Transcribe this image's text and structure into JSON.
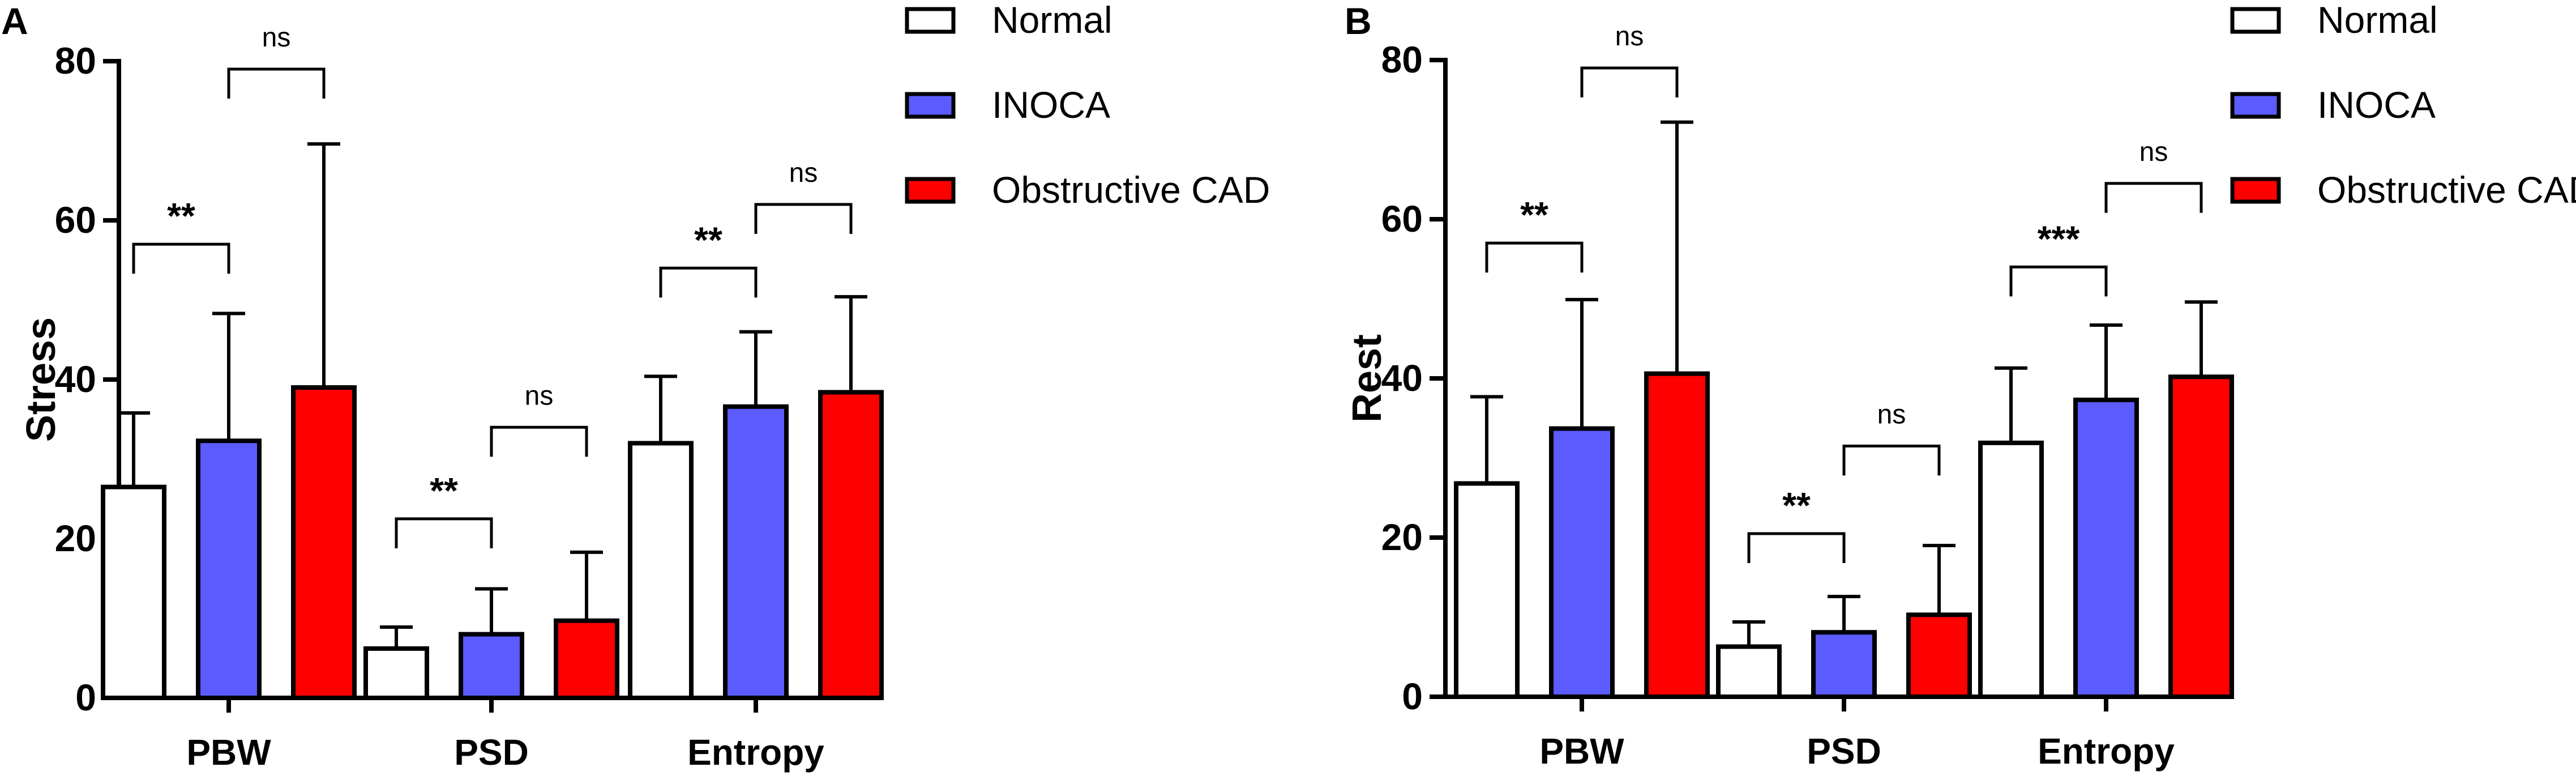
{
  "panels": [
    {
      "letter": "A",
      "ylabel": "Stress",
      "chart_data": {
        "type": "bar",
        "title": "",
        "ylabel": "Stress",
        "xlabel": "",
        "ylim": [
          0,
          80
        ],
        "yticks": [
          0,
          20,
          40,
          60,
          80
        ],
        "categories": [
          "PBW",
          "PSD",
          "Entropy"
        ],
        "series": [
          {
            "name": "Normal",
            "color": "#ffffff",
            "values": [
              26.5,
              6.2,
              32.0
            ],
            "errors": [
              9.3,
              2.7,
              8.4
            ]
          },
          {
            "name": "INOCA",
            "color": "#5b5bff",
            "values": [
              32.3,
              8.0,
              36.6
            ],
            "errors": [
              16.0,
              5.7,
              9.4
            ]
          },
          {
            "name": "Obstructive CAD",
            "color": "#ff0000",
            "values": [
              39.0,
              9.7,
              38.4
            ],
            "errors": [
              30.6,
              8.6,
              12.0
            ]
          }
        ],
        "significance": [
          {
            "category": 0,
            "pair": [
              0,
              1
            ],
            "label": "**",
            "y": 57
          },
          {
            "category": 0,
            "pair": [
              1,
              2
            ],
            "label": "ns",
            "y": 79
          },
          {
            "category": 1,
            "pair": [
              0,
              1
            ],
            "label": "**",
            "y": 22.5
          },
          {
            "category": 1,
            "pair": [
              1,
              2
            ],
            "label": "ns",
            "y": 34
          },
          {
            "category": 2,
            "pair": [
              0,
              1
            ],
            "label": "**",
            "y": 54
          },
          {
            "category": 2,
            "pair": [
              1,
              2
            ],
            "label": "ns",
            "y": 62
          }
        ]
      }
    },
    {
      "letter": "B",
      "ylabel": "Rest",
      "chart_data": {
        "type": "bar",
        "title": "",
        "ylabel": "Rest",
        "xlabel": "",
        "ylim": [
          0,
          80
        ],
        "yticks": [
          0,
          20,
          40,
          60,
          80
        ],
        "categories": [
          "PBW",
          "PSD",
          "Entropy"
        ],
        "series": [
          {
            "name": "Normal",
            "color": "#ffffff",
            "values": [
              26.8,
              6.3,
              31.9
            ],
            "errors": [
              10.9,
              3.1,
              9.4
            ]
          },
          {
            "name": "INOCA",
            "color": "#5b5bff",
            "values": [
              33.7,
              8.1,
              37.3
            ],
            "errors": [
              16.2,
              4.5,
              9.4
            ]
          },
          {
            "name": "Obstructive CAD",
            "color": "#ff0000",
            "values": [
              40.6,
              10.3,
              40.2
            ],
            "errors": [
              31.6,
              8.7,
              9.4
            ]
          }
        ],
        "significance": [
          {
            "category": 0,
            "pair": [
              0,
              1
            ],
            "label": "**",
            "y": 57
          },
          {
            "category": 0,
            "pair": [
              1,
              2
            ],
            "label": "ns",
            "y": 79
          },
          {
            "category": 1,
            "pair": [
              0,
              1
            ],
            "label": "**",
            "y": 20.5
          },
          {
            "category": 1,
            "pair": [
              1,
              2
            ],
            "label": "ns",
            "y": 31.5
          },
          {
            "category": 2,
            "pair": [
              0,
              1
            ],
            "label": "***",
            "y": 54
          },
          {
            "category": 2,
            "pair": [
              1,
              2
            ],
            "label": "ns",
            "y": 64.5
          }
        ]
      }
    }
  ],
  "legend": {
    "items": [
      {
        "label": "Normal",
        "color": "#ffffff"
      },
      {
        "label": "INOCA",
        "color": "#5b5bff"
      },
      {
        "label": "Obstructive CAD",
        "color": "#ff0000"
      }
    ]
  }
}
